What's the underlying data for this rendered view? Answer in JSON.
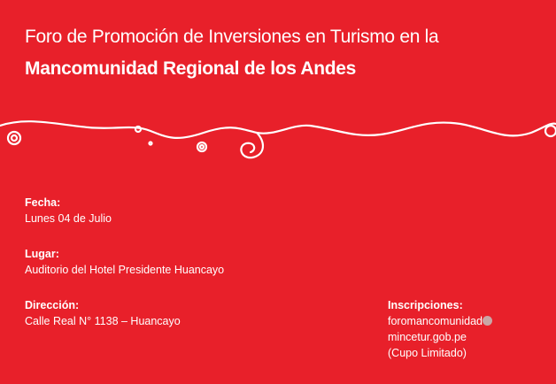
{
  "header": {
    "title_line1": "Foro de Promoción de Inversiones en Turismo en la",
    "title_line2": "Mancomunidad Regional de los Andes"
  },
  "fecha": {
    "label": "Fecha:",
    "value": "Lunes 04 de Julio"
  },
  "lugar": {
    "label": "Lugar:",
    "value": "Auditorio del Hotel Presidente Huancayo"
  },
  "direccion": {
    "label": "Dirección:",
    "value": "Calle Real N° 1138 – Huancayo"
  },
  "inscripciones": {
    "label": "Inscripciones:",
    "email_user": "foromancomunidad",
    "email_domain": "mincetur.gob.pe",
    "note": "(Cupo Limitado)"
  },
  "colors": {
    "background": "#e8202a",
    "text": "#ffffff"
  }
}
